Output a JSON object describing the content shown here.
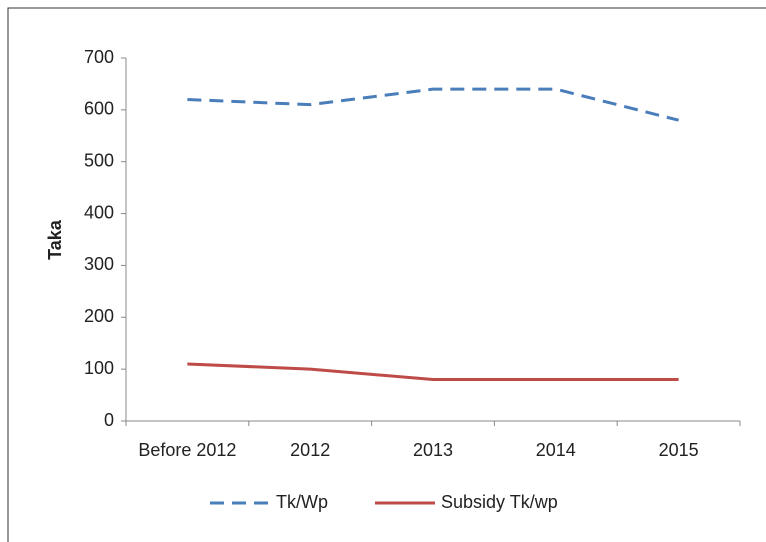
{
  "chart_data": {
    "type": "line",
    "y_label": "Taka",
    "categories": [
      "Before 2012",
      "2012",
      "2013",
      "2014",
      "2015"
    ],
    "series": [
      {
        "name": "Tk/Wp",
        "color": "#4a7ebb",
        "dash": true,
        "values": [
          620,
          610,
          640,
          640,
          580
        ]
      },
      {
        "name": "Subsidy Tk/wp",
        "color": "#be4b48",
        "dash": false,
        "values": [
          110,
          100,
          80,
          80,
          80
        ]
      }
    ],
    "ylim": [
      0,
      700
    ],
    "yticks": [
      0,
      100,
      200,
      300,
      400,
      500,
      600,
      700
    ],
    "grid": false,
    "legend": "bottom"
  }
}
